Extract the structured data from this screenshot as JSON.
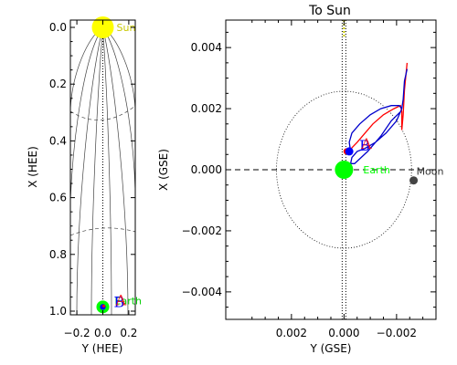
{
  "chart_data": [
    {
      "type": "scatter",
      "panel": "heliocentric",
      "xlabel": "Y (HEE)",
      "ylabel": "X (HEE)",
      "xlim": [
        -0.25,
        0.25
      ],
      "ylim": [
        1.0,
        0.0
      ],
      "xticks": [
        -0.2,
        0.0,
        0.2
      ],
      "xtick_labels": [
        "−0.2",
        "0.0",
        "0.2"
      ],
      "yticks": [
        0.0,
        0.2,
        0.4,
        0.6,
        0.8,
        1.0
      ],
      "ytick_labels": [
        "0.0",
        "0.2",
        "0.4",
        "0.6",
        "0.8",
        "1.0"
      ],
      "sun_label": "Sun",
      "earth_label": "Earth",
      "ab_labels": [
        "A",
        "B"
      ],
      "sun": {
        "x": 0.0,
        "y": 0.0
      },
      "earth": {
        "x": 0.0,
        "y": 0.985
      },
      "spacecraft_A": {
        "x": 0.0,
        "y": 0.985
      },
      "spacecraft_B": {
        "x": 0.0,
        "y": 0.985
      },
      "colors": {
        "sun": "#ffff00",
        "earth": "#00ff00",
        "A": "#ff0000",
        "B": "#0000ff",
        "sun_label": "#c8c800",
        "earth_label": "#00cc00"
      }
    },
    {
      "type": "scatter",
      "panel": "geocentric",
      "title": "To Sun",
      "xlabel": "Y (GSE)",
      "ylabel": "X (GSE)",
      "xlim": [
        0.0045,
        -0.0035
      ],
      "ylim": [
        -0.0049,
        0.0049
      ],
      "xticks": [
        0.002,
        0.0,
        -0.002
      ],
      "xtick_labels": [
        "0.002",
        "0.000",
        "−0.002"
      ],
      "yticks": [
        0.004,
        0.002,
        0.0,
        -0.002,
        -0.004
      ],
      "ytick_labels": [
        "0.004",
        "0.002",
        "0.000",
        "−0.002",
        "−0.004"
      ],
      "earth_label": "Earth",
      "moon_label": "Moon",
      "ab_labels": [
        "A",
        "B"
      ],
      "earth": {
        "x": 0.0,
        "y": 0.0
      },
      "moon": {
        "x": -0.00265,
        "y": -0.00035
      },
      "moon_orbit_radius": 0.00257,
      "spacecraft_A": {
        "x": -0.0001,
        "y": 0.0006
      },
      "spacecraft_B": {
        "x": -0.0002,
        "y": 0.0006
      },
      "series": [
        {
          "color": "#ff0000",
          "x": [
            -0.00028,
            -0.0005,
            -0.0008,
            -0.0011,
            -0.0015,
            -0.0019,
            -0.00215,
            -0.0022,
            -0.0022,
            -0.0022,
            -0.00225,
            -0.0023,
            -0.0024
          ],
          "y": [
            0.0007,
            0.0009,
            0.0012,
            0.0015,
            0.0018,
            0.002,
            0.0021,
            0.0019,
            0.0016,
            0.0013,
            0.0018,
            0.0026,
            0.0035
          ]
        },
        {
          "color": "#0000cc",
          "x": [
            -0.00025,
            -0.0002,
            -0.0003,
            -0.0006,
            -0.001,
            -0.0014,
            -0.0018,
            -0.0021,
            -0.0022,
            -0.002,
            -0.0016,
            -0.0012,
            -0.0008,
            -0.0005,
            -0.0003,
            -0.00025,
            -0.0004,
            -0.0009,
            -0.0014,
            -0.0018,
            -0.00215,
            -0.0022,
            -0.00225,
            -0.0023,
            -0.0024
          ],
          "y": [
            0.0006,
            0.0009,
            0.0012,
            0.0015,
            0.0018,
            0.002,
            0.0021,
            0.0021,
            0.002,
            0.0016,
            0.0012,
            0.0009,
            0.0007,
            0.0006,
            0.0004,
            0.0002,
            0.0002,
            0.0006,
            0.0011,
            0.0016,
            0.0019,
            0.002,
            0.0023,
            0.0029,
            0.0033
          ]
        }
      ],
      "colors": {
        "earth": "#00ff00",
        "A": "#ff0000",
        "B": "#0000ff",
        "moon": "#444444",
        "sun_line": "#c8c800"
      }
    }
  ]
}
